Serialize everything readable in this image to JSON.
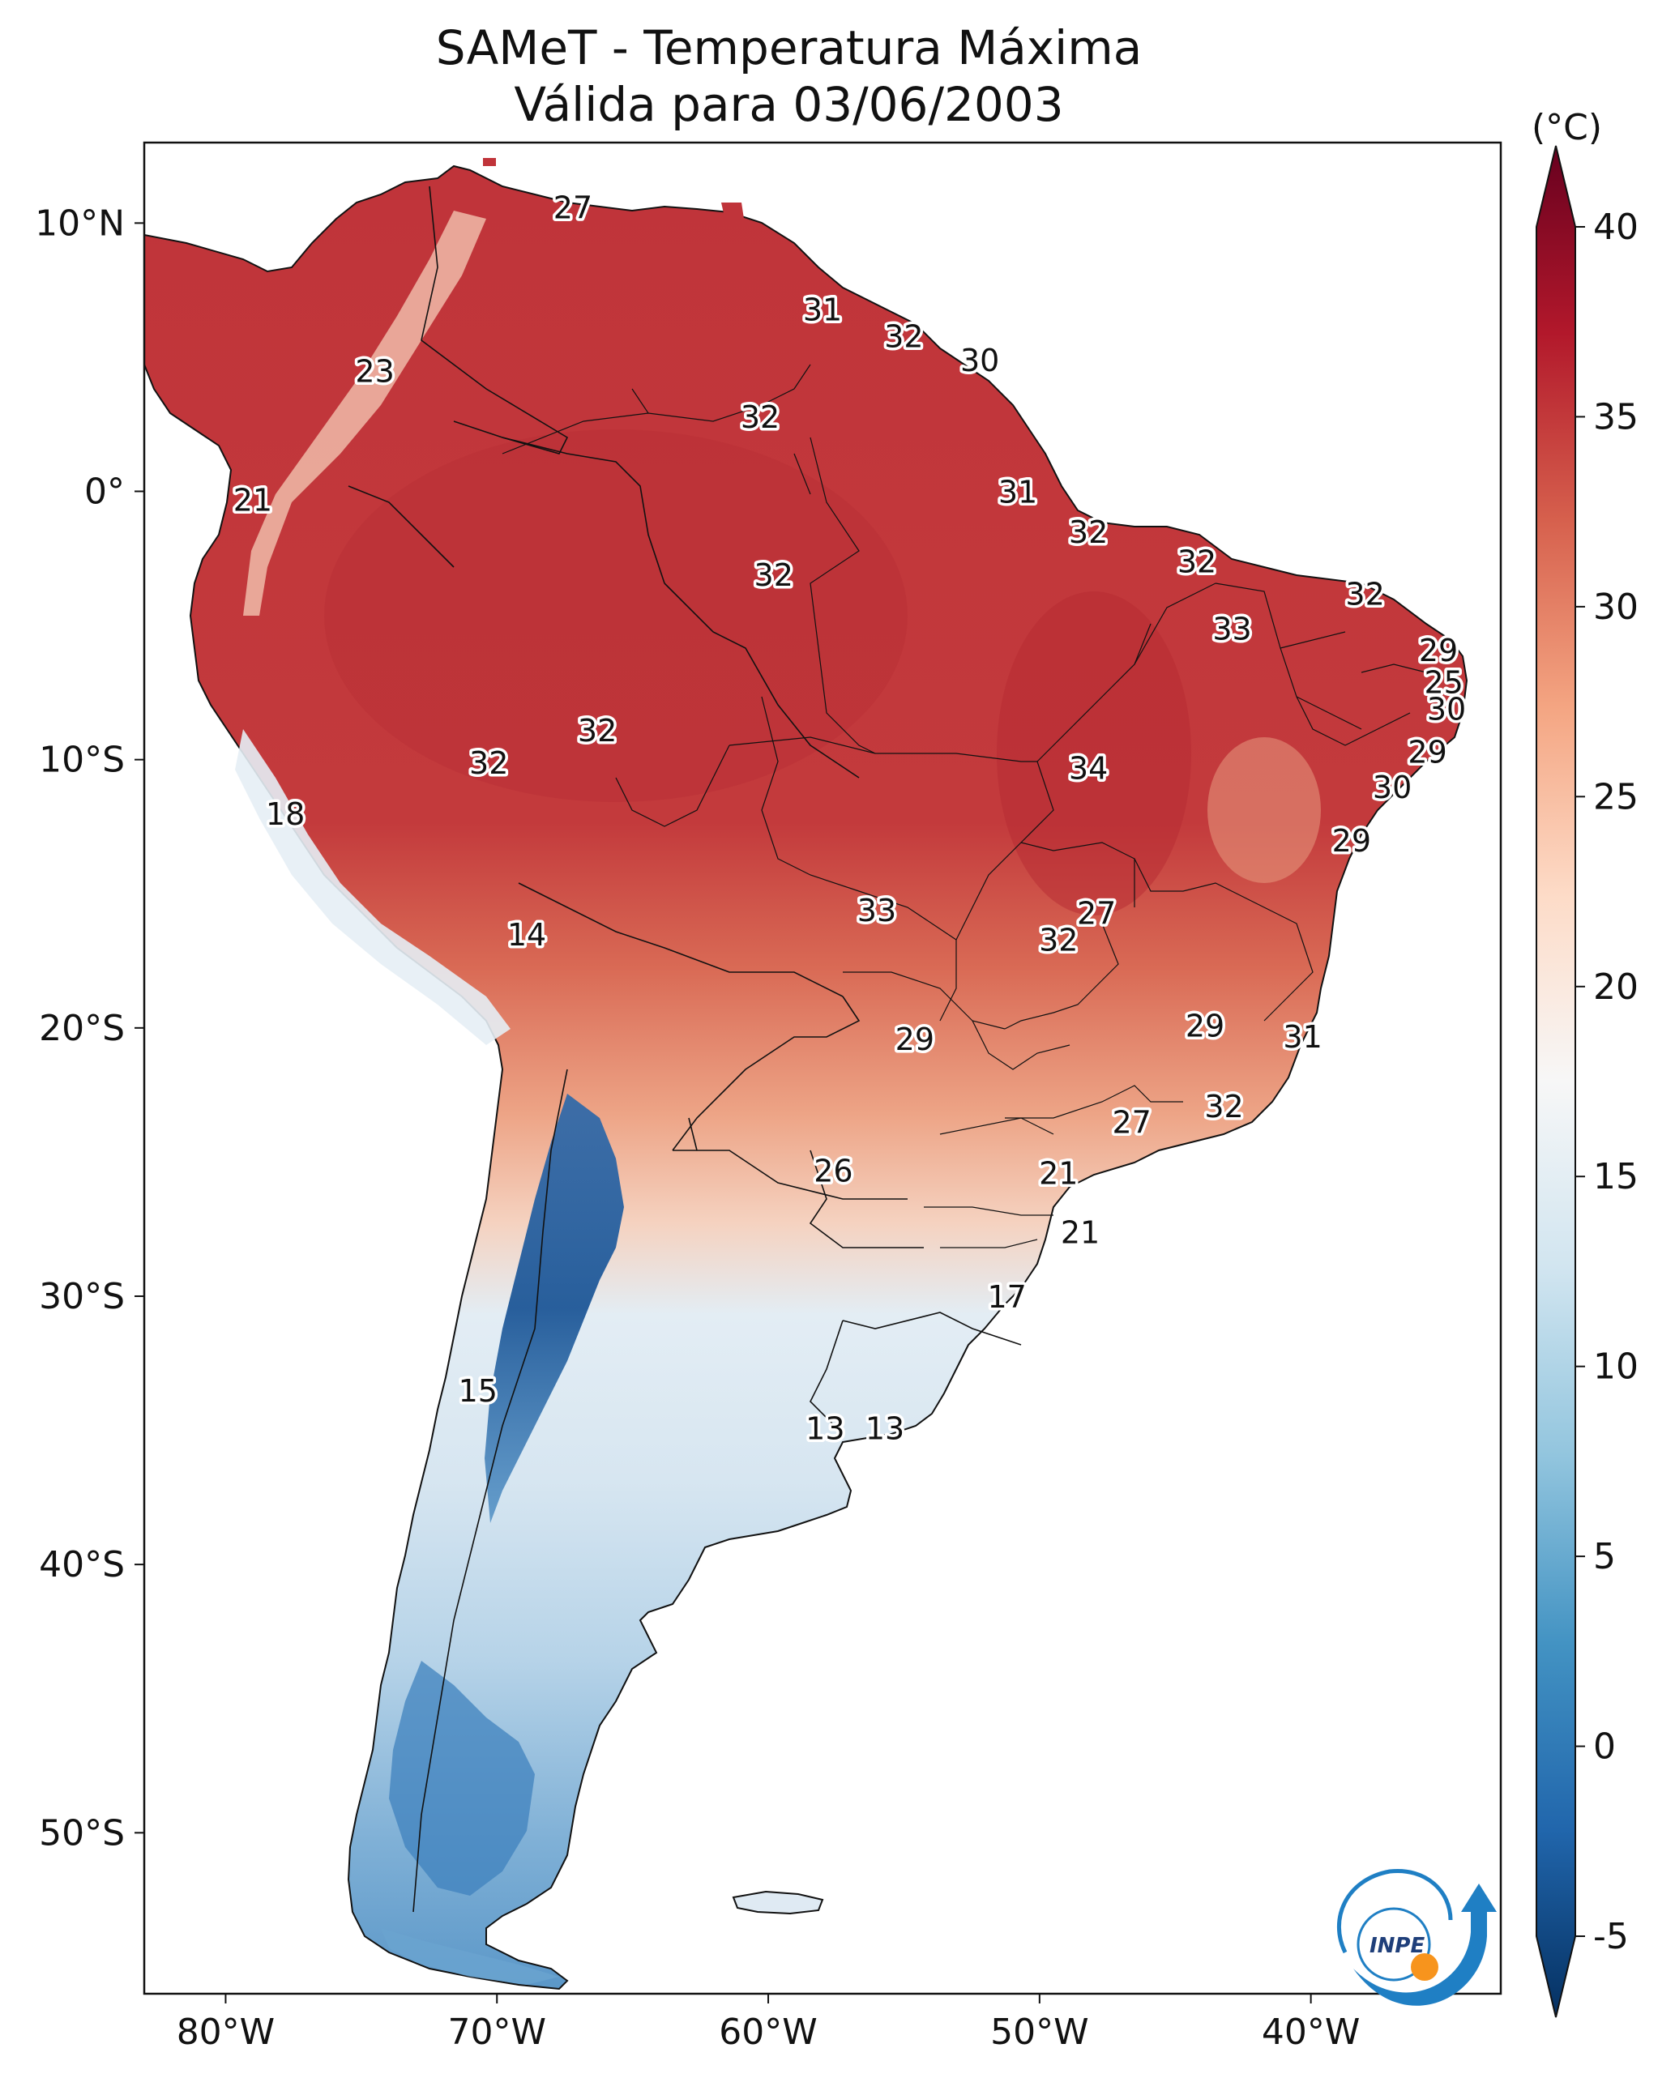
{
  "title": {
    "line1": "SAMeT - Temperatura Máxima",
    "line2": "Válida para 03/06/2003"
  },
  "map": {
    "lon_range": [
      -83,
      -33
    ],
    "lat_range": [
      -56,
      13
    ],
    "x_ticks": [
      {
        "value": -80,
        "label": "80°W"
      },
      {
        "value": -70,
        "label": "70°W"
      },
      {
        "value": -60,
        "label": "60°W"
      },
      {
        "value": -50,
        "label": "50°W"
      },
      {
        "value": -40,
        "label": "40°W"
      }
    ],
    "y_ticks": [
      {
        "value": 10,
        "label": "10°N"
      },
      {
        "value": 0,
        "label": "0°"
      },
      {
        "value": -10,
        "label": "10°S"
      },
      {
        "value": -20,
        "label": "20°S"
      },
      {
        "value": -30,
        "label": "30°S"
      },
      {
        "value": -40,
        "label": "40°S"
      },
      {
        "value": -50,
        "label": "50°S"
      }
    ],
    "station_labels": [
      {
        "text": "27",
        "lon": -67.2,
        "lat": 10.6
      },
      {
        "text": "31",
        "lon": -58.0,
        "lat": 6.8
      },
      {
        "text": "32",
        "lon": -55.0,
        "lat": 5.8
      },
      {
        "text": "30",
        "lon": -52.2,
        "lat": 4.9
      },
      {
        "text": "23",
        "lon": -74.5,
        "lat": 4.5
      },
      {
        "text": "32",
        "lon": -60.3,
        "lat": 2.8
      },
      {
        "text": "21",
        "lon": -79.0,
        "lat": -0.3
      },
      {
        "text": "31",
        "lon": -50.8,
        "lat": 0.0
      },
      {
        "text": "32",
        "lon": -48.2,
        "lat": -1.5
      },
      {
        "text": "32",
        "lon": -59.8,
        "lat": -3.1
      },
      {
        "text": "32",
        "lon": -44.2,
        "lat": -2.6
      },
      {
        "text": "32",
        "lon": -38.0,
        "lat": -3.8
      },
      {
        "text": "33",
        "lon": -42.9,
        "lat": -5.1
      },
      {
        "text": "29",
        "lon": -35.3,
        "lat": -5.9
      },
      {
        "text": "25",
        "lon": -35.1,
        "lat": -7.1
      },
      {
        "text": "30",
        "lon": -35.0,
        "lat": -8.1
      },
      {
        "text": "32",
        "lon": -66.3,
        "lat": -8.9
      },
      {
        "text": "32",
        "lon": -70.3,
        "lat": -10.1
      },
      {
        "text": "34",
        "lon": -48.2,
        "lat": -10.3
      },
      {
        "text": "29",
        "lon": -35.7,
        "lat": -9.7
      },
      {
        "text": "30",
        "lon": -37.0,
        "lat": -11.0
      },
      {
        "text": "18",
        "lon": -77.8,
        "lat": -12.0
      },
      {
        "text": "29",
        "lon": -38.5,
        "lat": -13.0
      },
      {
        "text": "14",
        "lon": -68.9,
        "lat": -16.5
      },
      {
        "text": "33",
        "lon": -56.0,
        "lat": -15.6
      },
      {
        "text": "27",
        "lon": -47.9,
        "lat": -15.7
      },
      {
        "text": "32",
        "lon": -49.3,
        "lat": -16.7
      },
      {
        "text": "29",
        "lon": -54.6,
        "lat": -20.4
      },
      {
        "text": "29",
        "lon": -43.9,
        "lat": -19.9
      },
      {
        "text": "31",
        "lon": -40.3,
        "lat": -20.3
      },
      {
        "text": "32",
        "lon": -43.2,
        "lat": -22.9
      },
      {
        "text": "27",
        "lon": -46.6,
        "lat": -23.5
      },
      {
        "text": "26",
        "lon": -57.6,
        "lat": -25.3
      },
      {
        "text": "21",
        "lon": -49.3,
        "lat": -25.4
      },
      {
        "text": "21",
        "lon": -48.5,
        "lat": -27.6
      },
      {
        "text": "17",
        "lon": -51.2,
        "lat": -30.0
      },
      {
        "text": "15",
        "lon": -70.7,
        "lat": -33.5
      },
      {
        "text": "13",
        "lon": -57.9,
        "lat": -34.9
      },
      {
        "text": "13",
        "lon": -55.7,
        "lat": -34.9
      }
    ]
  },
  "colorbar": {
    "unit": "(°C)",
    "min": -5,
    "max": 40,
    "ticks": [
      {
        "value": 40,
        "label": "40"
      },
      {
        "value": 35,
        "label": "35"
      },
      {
        "value": 30,
        "label": "30"
      },
      {
        "value": 25,
        "label": "25"
      },
      {
        "value": 20,
        "label": "20"
      },
      {
        "value": 15,
        "label": "15"
      },
      {
        "value": 10,
        "label": "10"
      },
      {
        "value": 5,
        "label": "5"
      },
      {
        "value": 0,
        "label": "0"
      },
      {
        "value": -5,
        "label": "-5"
      }
    ],
    "colors": [
      "#053061",
      "#2166ac",
      "#4393c3",
      "#92c5de",
      "#d1e5f0",
      "#f7f7f7",
      "#fddbc7",
      "#f4a582",
      "#d6604d",
      "#b2182b",
      "#67001f"
    ]
  },
  "logo": {
    "text": "INPE",
    "colors": {
      "blue": "#1f7fc4",
      "orange": "#f7941d"
    }
  },
  "colors": {
    "hot": "#c0343a",
    "warm": "#e07a5f",
    "mild": "#f7d4c0",
    "cool": "#dfeaf3",
    "cold": "#4f8fc4",
    "very_cold": "#1c5a9c"
  }
}
